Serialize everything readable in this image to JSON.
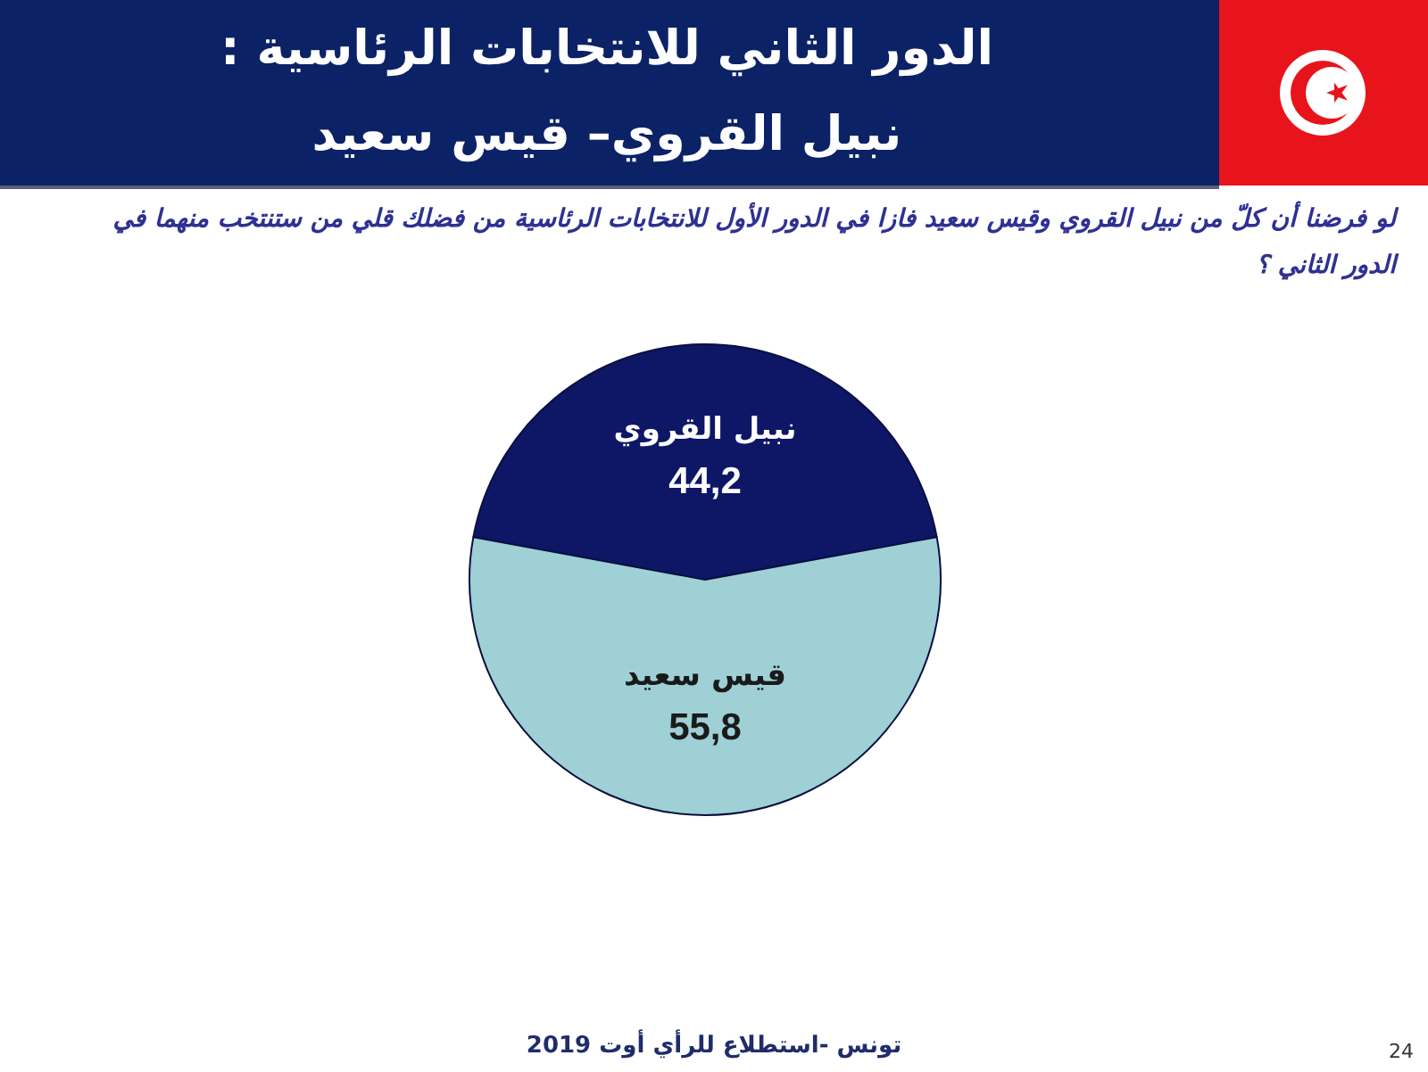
{
  "chart_data": {
    "type": "pie",
    "title": "الدور الثاني للانتخابات الرئاسية :\nنبيل القروي– قيس سعيد",
    "subtitle": "لو فرضنا أن كلّ من نبيل القروي وقيس سعيد فازا في الدور الأول للانتخابات الرئاسية  من فضلك قلي من ستنتخب منهما في الدور الثاني ؟",
    "categories": [
      "نبيل القروي",
      "قيس سعيد"
    ],
    "values": [
      44.2,
      55.8
    ],
    "colors": [
      "#0d1766",
      "#9ed0d6"
    ],
    "value_labels": [
      "44,2",
      "55,8"
    ],
    "annotations": [
      "تونس -استطلاع للرأي أوت 2019",
      "24"
    ]
  }
}
